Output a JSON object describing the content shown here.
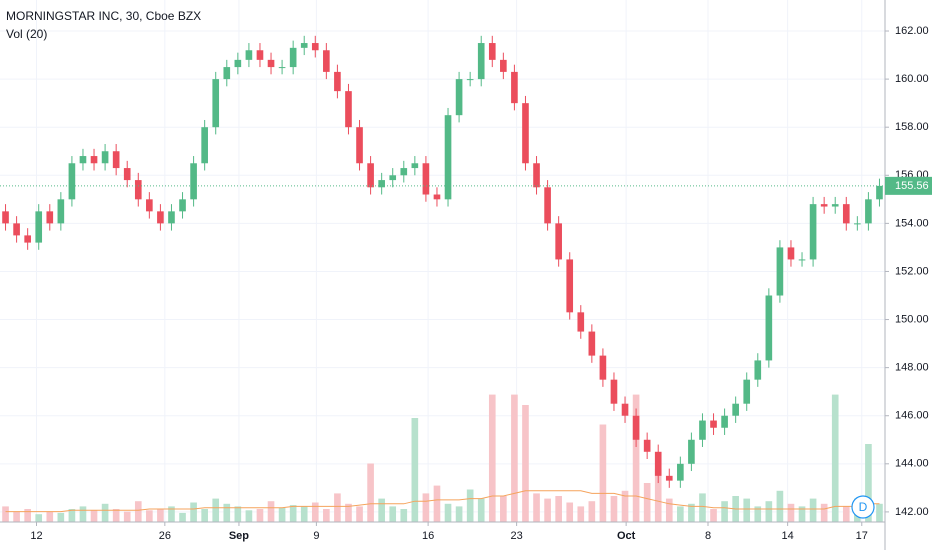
{
  "chart_data": {
    "type": "candlestick",
    "title": "MORNINGSTAR INC, 30, Cboe BZX",
    "volume_label": "Vol (20)",
    "interval_button": "D",
    "up_color": "#53b987",
    "down_color": "#eb4d5c",
    "volume_up_color": "#b7e1cd",
    "volume_down_color": "#f7c4c8",
    "volume_ma_color": "#f5a35c",
    "grid": true,
    "xlim": [
      -0.5,
      79.5
    ],
    "xticks": [
      {
        "value": 2.8,
        "label": "12"
      },
      {
        "value": 14.4,
        "label": "26"
      },
      {
        "value": 21.1,
        "label": "Sep"
      },
      {
        "value": 28.1,
        "label": "9"
      },
      {
        "value": 38.2,
        "label": "16"
      },
      {
        "value": 46.2,
        "label": "23"
      },
      {
        "value": 56.1,
        "label": "Oct"
      },
      {
        "value": 63.5,
        "label": "8"
      },
      {
        "value": 70.7,
        "label": "14"
      },
      {
        "value": 77.4,
        "label": "17"
      }
    ],
    "ylim": [
      141.58,
      163.29
    ],
    "yticks": [
      {
        "value": 142,
        "label": "142.00"
      },
      {
        "value": 144,
        "label": "144.00"
      },
      {
        "value": 146,
        "label": "146.00"
      },
      {
        "value": 148,
        "label": "148.00"
      },
      {
        "value": 150,
        "label": "150.00"
      },
      {
        "value": 152,
        "label": "152.00"
      },
      {
        "value": 154,
        "label": "154.00"
      },
      {
        "value": 156,
        "label": "156.00"
      },
      {
        "value": 158,
        "label": "158.00"
      },
      {
        "value": 160,
        "label": "160.00"
      },
      {
        "value": 162,
        "label": "162.00"
      }
    ],
    "last_price": 155.56,
    "open": [
      154.5,
      154,
      153.5,
      153.2,
      154.5,
      154,
      155,
      156.5,
      156.8,
      156.5,
      157,
      156.3,
      155.8,
      155,
      154.5,
      154,
      154.5,
      155,
      156.5,
      158,
      160,
      160.5,
      160.8,
      161.2,
      160.8,
      160.5,
      160.5,
      161.3,
      161.5,
      161.2,
      160.3,
      159.5,
      158,
      156.5,
      155.5,
      155.8,
      156,
      156.3,
      156.5,
      155.2,
      155,
      158.5,
      160,
      160,
      161.5,
      160.8,
      160.3,
      159,
      156.5,
      155.5,
      154,
      152.5,
      150.3,
      149.5,
      148.5,
      147.5,
      146.5,
      146,
      145,
      144.5,
      143.5,
      143.3,
      144,
      145,
      145.8,
      145.5,
      146,
      146.5,
      147.5,
      148.3,
      151,
      153,
      152.5,
      152.5,
      154.8,
      154.7,
      154.8,
      154,
      154,
      155
    ],
    "high": [
      154.8,
      154.3,
      153.8,
      154.8,
      154.8,
      155.3,
      156.8,
      157.1,
      157.1,
      157.3,
      157.3,
      156.6,
      156.1,
      155.3,
      154.8,
      154.8,
      155.3,
      156.8,
      158.3,
      160.3,
      160.8,
      161.1,
      161.5,
      161.5,
      161.1,
      160.8,
      161.6,
      161.8,
      161.8,
      161.5,
      160.6,
      159.8,
      158.3,
      156.8,
      156.1,
      156.3,
      156.6,
      156.8,
      156.8,
      155.5,
      158.8,
      160.3,
      160.3,
      161.8,
      161.8,
      161.1,
      160.6,
      159.3,
      156.8,
      155.8,
      154.3,
      152.8,
      150.6,
      149.8,
      148.8,
      147.8,
      146.8,
      146.3,
      145.3,
      144.8,
      143.8,
      144.3,
      145.3,
      146.1,
      146.1,
      146.3,
      146.8,
      147.8,
      148.6,
      151.3,
      153.3,
      153.3,
      152.8,
      155.1,
      155.1,
      155.1,
      155.1,
      154.3,
      155.3,
      155.86
    ],
    "low": [
      153.7,
      153.2,
      152.9,
      152.9,
      153.7,
      153.7,
      154.7,
      156.2,
      156.2,
      156.2,
      156,
      155.5,
      154.7,
      154.2,
      153.7,
      153.7,
      154.2,
      154.7,
      156.2,
      157.7,
      159.7,
      160.2,
      160.5,
      160.5,
      160.2,
      160.2,
      160.2,
      161,
      160.9,
      160,
      159.2,
      157.7,
      156.2,
      155.2,
      155.2,
      155.5,
      155.7,
      156,
      154.9,
      154.7,
      154.7,
      158.2,
      159.7,
      159.7,
      160.5,
      160,
      158.7,
      156.2,
      155.2,
      153.7,
      152.2,
      150,
      149.2,
      148.2,
      147.2,
      146.2,
      145.7,
      144.7,
      144.2,
      143.2,
      143,
      143,
      143.7,
      144.7,
      145.2,
      145.2,
      145.7,
      146.2,
      147.2,
      148,
      150.7,
      152.2,
      152.2,
      152.2,
      154.4,
      154.4,
      153.7,
      153.7,
      153.7,
      154.7
    ],
    "close": [
      154,
      153.5,
      153.2,
      154.5,
      154,
      155,
      156.5,
      156.8,
      156.5,
      157,
      156.3,
      155.8,
      155,
      154.5,
      154,
      154.5,
      155,
      156.5,
      158,
      160,
      160.5,
      160.8,
      161.2,
      160.8,
      160.5,
      160.5,
      161.3,
      161.5,
      161.2,
      160.3,
      159.5,
      158,
      156.5,
      155.5,
      155.8,
      156,
      156.3,
      156.5,
      155.2,
      155,
      158.5,
      160,
      160,
      161.5,
      160.8,
      160.3,
      159,
      156.5,
      155.5,
      154,
      152.5,
      150.3,
      149.5,
      148.5,
      147.5,
      146.5,
      146,
      145,
      144.5,
      143.5,
      143.3,
      144,
      145,
      145.8,
      145.5,
      146,
      146.5,
      147.5,
      148.3,
      151,
      153,
      152.5,
      152.5,
      154.8,
      154.7,
      154.8,
      154,
      154,
      155,
      155.56
    ],
    "vlim": [
      0,
      100
    ],
    "volume": [
      12,
      8,
      10,
      6,
      8,
      7,
      10,
      12,
      9,
      14,
      10,
      8,
      16,
      9,
      10,
      12,
      7,
      15,
      10,
      18,
      14,
      12,
      9,
      10,
      16,
      11,
      13,
      12,
      15,
      10,
      22,
      14,
      12,
      45,
      18,
      12,
      10,
      80,
      22,
      28,
      14,
      12,
      25,
      18,
      98,
      20,
      98,
      90,
      22,
      18,
      20,
      15,
      12,
      16,
      75,
      20,
      24,
      98,
      30,
      41,
      18,
      12,
      14,
      22,
      10,
      16,
      20,
      18,
      12,
      16,
      24,
      14,
      12,
      18,
      14,
      98,
      12,
      18,
      60,
      14
    ],
    "volume_ma": [
      8,
      8,
      8,
      8,
      8,
      8,
      9,
      9,
      9,
      9,
      9,
      9,
      9,
      10,
      10,
      10,
      10,
      10,
      11,
      11,
      11,
      11,
      11,
      11,
      11,
      11,
      12,
      12,
      12,
      12,
      12,
      12,
      13,
      14,
      14,
      14,
      14,
      16,
      16,
      17,
      17,
      17,
      18,
      18,
      20,
      20,
      22,
      24,
      24,
      24,
      24,
      24,
      24,
      22,
      22,
      22,
      20,
      20,
      18,
      16,
      14,
      13,
      12,
      12,
      11,
      11,
      10,
      10,
      10,
      10,
      10,
      10,
      10,
      10,
      10,
      12,
      12,
      12,
      14,
      14
    ]
  }
}
